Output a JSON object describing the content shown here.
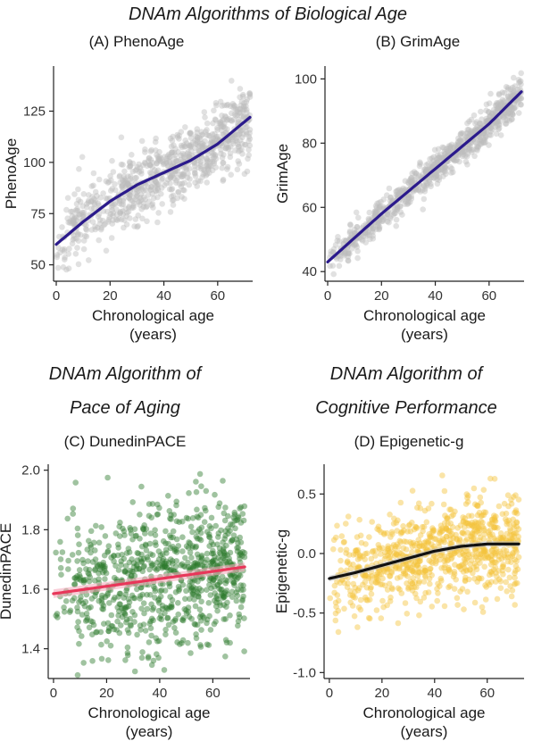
{
  "headings": {
    "top": "DNAm Algorithms of Biological Age",
    "bottom_left_line1": "DNAm Algorithm of",
    "bottom_left_line2": "Pace of Aging",
    "bottom_right_line1": "DNAm Algorithm of",
    "bottom_right_line2": "Cognitive Performance"
  },
  "chart_data": [
    {
      "id": "A",
      "type": "scatter",
      "title": "(A) PhenoAge",
      "xlabel_line1": "Chronological age",
      "xlabel_line2": "(years)",
      "ylabel": "PhenoAge",
      "xlim": [
        -1,
        73
      ],
      "ylim": [
        42,
        147
      ],
      "xticks": [
        0,
        20,
        40,
        60
      ],
      "yticks": [
        50,
        75,
        100,
        125
      ],
      "point_color": "#bdbdbd",
      "fit_color": "#2b1a8c",
      "fit_band_color": "#bdbdbd",
      "grid": false,
      "trend": {
        "x": [
          0,
          10,
          20,
          30,
          40,
          50,
          60,
          72
        ],
        "y": [
          60,
          71,
          81,
          89,
          95,
          101,
          109,
          122
        ]
      },
      "scatter_spread": 9,
      "seed": 11
    },
    {
      "id": "B",
      "type": "scatter",
      "title": "(B) GrimAge",
      "xlabel_line1": "Chronological age",
      "xlabel_line2": "(years)",
      "ylabel": "GrimAge",
      "xlim": [
        -1,
        73
      ],
      "ylim": [
        37,
        104
      ],
      "xticks": [
        0,
        20,
        40,
        60
      ],
      "yticks": [
        40,
        60,
        80,
        100
      ],
      "point_color": "#bdbdbd",
      "fit_color": "#2b1a8c",
      "fit_band_color": "#bdbdbd",
      "grid": false,
      "trend": {
        "x": [
          0,
          20,
          40,
          60,
          72
        ],
        "y": [
          43,
          58,
          72,
          86,
          96
        ]
      },
      "scatter_spread": 2.6,
      "seed": 23
    },
    {
      "id": "C",
      "type": "scatter",
      "title": "(C) DunedinPACE",
      "xlabel_line1": "Chronological age",
      "xlabel_line2": "(years)",
      "ylabel": "DunedinPACE",
      "xlim": [
        -2,
        74
      ],
      "ylim": [
        1.3,
        2.02
      ],
      "xticks": [
        0,
        20,
        40,
        60
      ],
      "yticks": [
        1.4,
        1.6,
        1.8,
        2.0
      ],
      "ytick_labels": [
        "1.4",
        "1.6",
        "1.8",
        "2.0"
      ],
      "point_color": "#2d7a2d",
      "fit_color": "#e8375a",
      "fit_band_color": "#f4a6b8",
      "grid": false,
      "trend": {
        "x": [
          0,
          72
        ],
        "y": [
          1.585,
          1.675
        ]
      },
      "scatter_spread": 0.12,
      "seed": 37
    },
    {
      "id": "D",
      "type": "scatter",
      "title": "(D) Epigenetic-g",
      "xlabel_line1": "Chronological age",
      "xlabel_line2": "(years)",
      "ylabel": "Epigenetic-g",
      "xlim": [
        -2,
        74
      ],
      "ylim": [
        -1.05,
        0.75
      ],
      "xticks": [
        0,
        20,
        40,
        60
      ],
      "yticks": [
        -1.0,
        -0.5,
        0.0,
        0.5
      ],
      "ytick_labels": [
        "-1.0",
        "-0.5",
        "0.0",
        "0.5"
      ],
      "point_color": "#f5c33b",
      "fit_color": "#111111",
      "fit_band_color": "#bdbdbd",
      "grid": false,
      "trend": {
        "x": [
          0,
          10,
          20,
          30,
          40,
          50,
          60,
          72
        ],
        "y": [
          -0.21,
          -0.16,
          -0.1,
          -0.04,
          0.02,
          0.06,
          0.08,
          0.08
        ]
      },
      "scatter_spread": 0.2,
      "seed": 53
    }
  ]
}
